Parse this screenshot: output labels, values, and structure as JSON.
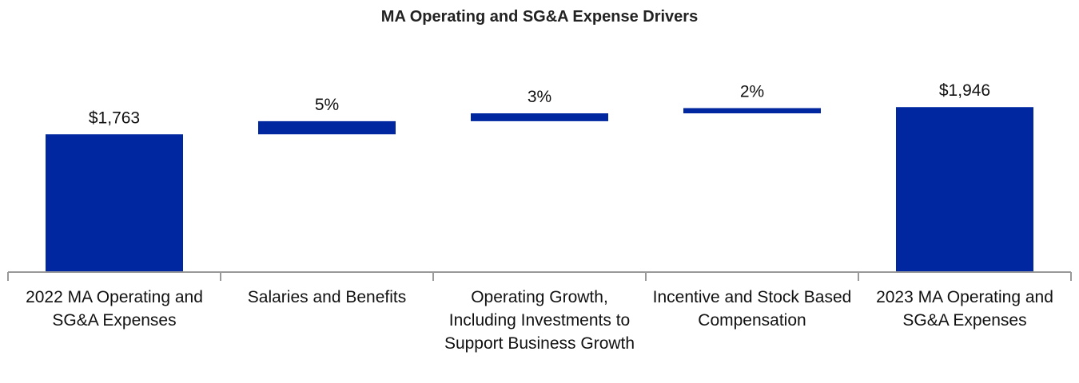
{
  "chart_data": {
    "type": "waterfall",
    "title": "MA Operating and SG&A Expense Drivers",
    "categories": [
      "2022 MA Operating and SG&A Expenses",
      "Salaries and Benefits",
      "Operating Growth, Including Investments to Support Business Growth",
      "Incentive and Stock Based Compensation",
      "2023 MA Operating and SG&A Expenses"
    ],
    "values": [
      1763,
      5,
      3,
      2,
      1946
    ],
    "value_labels": [
      "$1,763",
      "5%",
      "3%",
      "2%",
      "$1,946"
    ],
    "color": "#0027a0",
    "ylim": [
      840,
      2130
    ]
  }
}
